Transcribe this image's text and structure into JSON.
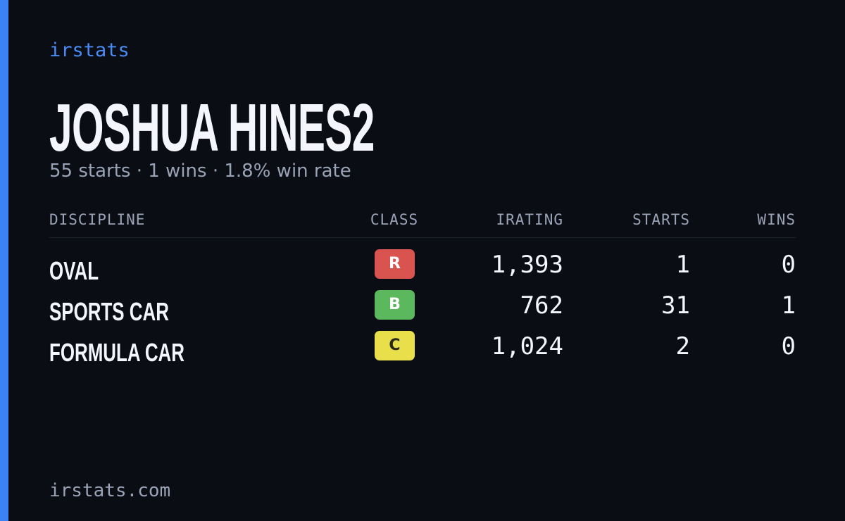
{
  "brand": "irstats",
  "profile": {
    "name": "JOSHUA HINES2",
    "summary": "55 starts · 1 wins · 1.8% win rate"
  },
  "table": {
    "columns": [
      "DISCIPLINE",
      "CLASS",
      "IRATING",
      "STARTS",
      "WINS"
    ],
    "rows": [
      [
        "OVAL",
        "R",
        "1,393",
        "1",
        "0"
      ],
      [
        "SPORTS CAR",
        "B",
        "762",
        "31",
        "1"
      ],
      [
        "FORMULA CAR",
        "C",
        "1,024",
        "2",
        "0"
      ]
    ]
  },
  "footer": "irstats.com"
}
